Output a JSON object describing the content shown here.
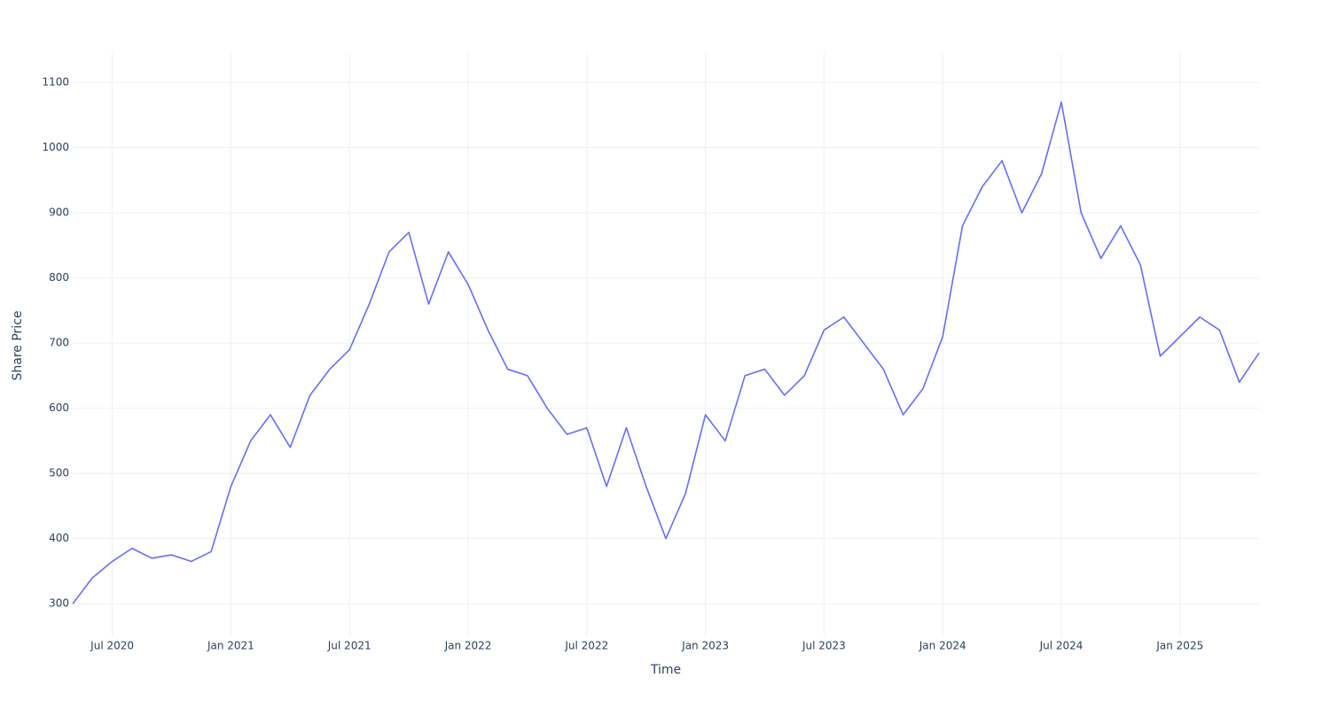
{
  "chart_data": {
    "type": "line",
    "x_label": "Time",
    "y_label": "Share Price",
    "x": [
      "2020-05",
      "2020-06",
      "2020-07",
      "2020-08",
      "2020-09",
      "2020-10",
      "2020-11",
      "2020-12",
      "2021-01",
      "2021-02",
      "2021-03",
      "2021-04",
      "2021-05",
      "2021-06",
      "2021-07",
      "2021-08",
      "2021-09",
      "2021-10",
      "2021-11",
      "2021-12",
      "2022-01",
      "2022-02",
      "2022-03",
      "2022-04",
      "2022-05",
      "2022-06",
      "2022-07",
      "2022-08",
      "2022-09",
      "2022-10",
      "2022-11",
      "2022-12",
      "2023-01",
      "2023-02",
      "2023-03",
      "2023-04",
      "2023-05",
      "2023-06",
      "2023-07",
      "2023-08",
      "2023-09",
      "2023-10",
      "2023-11",
      "2023-12",
      "2024-01",
      "2024-02",
      "2024-03",
      "2024-04",
      "2024-05",
      "2024-06",
      "2024-07",
      "2024-08",
      "2024-09",
      "2024-10",
      "2024-11",
      "2024-12",
      "2025-01",
      "2025-02",
      "2025-03",
      "2025-04",
      "2025-05"
    ],
    "series": [
      {
        "color": "#636efa",
        "values": [
          300,
          340,
          365,
          385,
          370,
          375,
          365,
          380,
          480,
          550,
          590,
          540,
          620,
          660,
          690,
          760,
          840,
          870,
          760,
          840,
          790,
          720,
          660,
          650,
          600,
          560,
          570,
          480,
          570,
          480,
          400,
          470,
          590,
          550,
          650,
          660,
          620,
          650,
          720,
          740,
          700,
          660,
          590,
          630,
          710,
          880,
          940,
          980,
          900,
          960,
          1070,
          900,
          830,
          880,
          820,
          680,
          710,
          740,
          720,
          640,
          685
        ]
      }
    ],
    "xlim": [
      "2020-05",
      "2025-05"
    ],
    "xticks": [
      {
        "value": "2020-07",
        "label": "Jul 2020"
      },
      {
        "value": "2021-01",
        "label": "Jan 2021"
      },
      {
        "value": "2021-07",
        "label": "Jul 2021"
      },
      {
        "value": "2022-01",
        "label": "Jan 2022"
      },
      {
        "value": "2022-07",
        "label": "Jul 2022"
      },
      {
        "value": "2023-01",
        "label": "Jan 2023"
      },
      {
        "value": "2023-07",
        "label": "Jul 2023"
      },
      {
        "value": "2024-01",
        "label": "Jan 2024"
      },
      {
        "value": "2024-07",
        "label": "Jul 2024"
      },
      {
        "value": "2025-01",
        "label": "Jan 2025"
      }
    ],
    "ylim": [
      250,
      1145
    ],
    "yticks": [
      300,
      400,
      500,
      600,
      700,
      800,
      900,
      1000,
      1100
    ],
    "grid": true
  }
}
